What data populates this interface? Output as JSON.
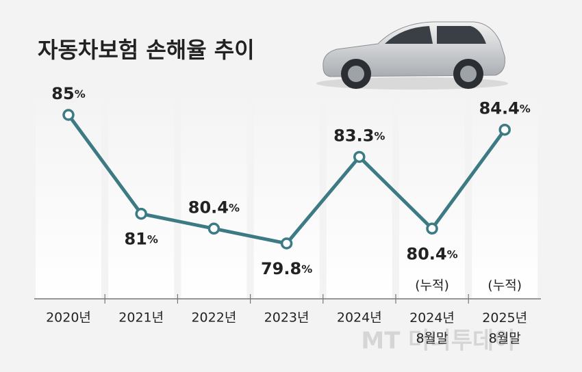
{
  "chart_data": {
    "type": "line",
    "title": "자동차보험 손해율 추이",
    "categories": [
      "2020년",
      "2021년",
      "2022년",
      "2023년",
      "2024년",
      "2024년 8월말",
      "2025년 8월말"
    ],
    "series": [
      {
        "color": "#3c7a84",
        "values": [
          85,
          81,
          80.4,
          79.8,
          83.3,
          80.4,
          84.4
        ],
        "value_labels": [
          "85%",
          "81%",
          "80.4%",
          "79.8%",
          "83.3%",
          "80.4%",
          "84.4%"
        ]
      }
    ],
    "annotations": [
      "(누적)",
      "(누적)"
    ],
    "watermark": "MT 머니투데이"
  }
}
